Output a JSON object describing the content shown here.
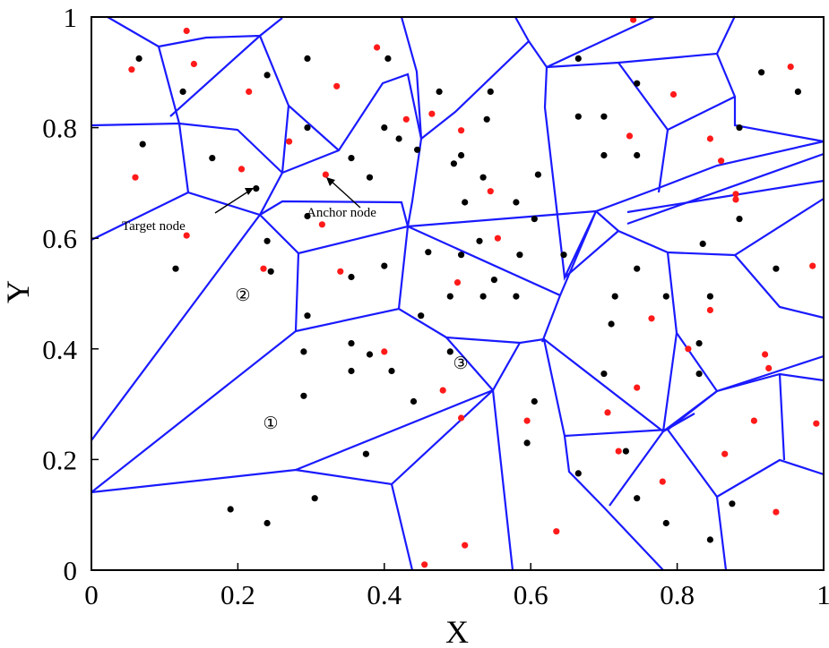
{
  "chart_data": {
    "type": "scatter",
    "xlabel": "X",
    "ylabel": "Y",
    "xlim": [
      0,
      1
    ],
    "ylim": [
      0,
      1
    ],
    "xticks": [
      "0",
      "0.2",
      "0.4",
      "0.6",
      "0.8",
      "1"
    ],
    "yticks": [
      "0",
      "0.2",
      "0.4",
      "0.6",
      "0.8",
      "1"
    ],
    "grid": false,
    "colors": {
      "edges": "#1a1aff",
      "anchor": "#ff1a1a",
      "target": "#000000"
    },
    "annotations": [
      {
        "text": "Target node",
        "x": 0.22,
        "y": 0.69
      },
      {
        "text": "Anchor node",
        "x": 0.32,
        "y": 0.71
      },
      {
        "text": "②",
        "x": 0.21,
        "y": 0.51
      },
      {
        "text": "③",
        "x": 0.51,
        "y": 0.375
      },
      {
        "text": "①",
        "x": 0.25,
        "y": 0.265
      }
    ],
    "series": [
      {
        "marker": "red-dot",
        "points": [
          [
            0.13,
            0.975
          ],
          [
            0.055,
            0.905
          ],
          [
            0.14,
            0.915
          ],
          [
            0.215,
            0.865
          ],
          [
            0.39,
            0.945
          ],
          [
            0.335,
            0.875
          ],
          [
            0.27,
            0.775
          ],
          [
            0.06,
            0.71
          ],
          [
            0.205,
            0.725
          ],
          [
            0.32,
            0.715
          ],
          [
            0.43,
            0.815
          ],
          [
            0.465,
            0.825
          ],
          [
            0.505,
            0.795
          ],
          [
            0.545,
            0.685
          ],
          [
            0.315,
            0.625
          ],
          [
            0.13,
            0.605
          ],
          [
            0.235,
            0.545
          ],
          [
            0.34,
            0.54
          ],
          [
            0.555,
            0.6
          ],
          [
            0.5,
            0.52
          ],
          [
            0.4,
            0.395
          ],
          [
            0.48,
            0.325
          ],
          [
            0.505,
            0.275
          ],
          [
            0.595,
            0.27
          ],
          [
            0.51,
            0.045
          ],
          [
            0.455,
            0.01
          ],
          [
            0.635,
            0.07
          ],
          [
            0.74,
            0.995
          ],
          [
            0.955,
            0.91
          ],
          [
            0.795,
            0.86
          ],
          [
            0.735,
            0.785
          ],
          [
            0.845,
            0.78
          ],
          [
            0.86,
            0.74
          ],
          [
            0.88,
            0.68
          ],
          [
            0.88,
            0.67
          ],
          [
            0.985,
            0.55
          ],
          [
            0.845,
            0.47
          ],
          [
            0.765,
            0.455
          ],
          [
            0.815,
            0.4
          ],
          [
            0.745,
            0.33
          ],
          [
            0.92,
            0.39
          ],
          [
            0.925,
            0.365
          ],
          [
            0.705,
            0.285
          ],
          [
            0.72,
            0.215
          ],
          [
            0.78,
            0.16
          ],
          [
            0.865,
            0.21
          ],
          [
            0.905,
            0.27
          ],
          [
            0.99,
            0.265
          ],
          [
            0.935,
            0.105
          ]
        ]
      },
      {
        "marker": "black-dot",
        "points": [
          [
            0.065,
            0.925
          ],
          [
            0.125,
            0.865
          ],
          [
            0.24,
            0.895
          ],
          [
            0.295,
            0.925
          ],
          [
            0.405,
            0.925
          ],
          [
            0.07,
            0.77
          ],
          [
            0.165,
            0.745
          ],
          [
            0.225,
            0.69
          ],
          [
            0.295,
            0.8
          ],
          [
            0.355,
            0.745
          ],
          [
            0.38,
            0.71
          ],
          [
            0.4,
            0.8
          ],
          [
            0.42,
            0.78
          ],
          [
            0.445,
            0.76
          ],
          [
            0.475,
            0.865
          ],
          [
            0.545,
            0.865
          ],
          [
            0.54,
            0.815
          ],
          [
            0.505,
            0.75
          ],
          [
            0.495,
            0.735
          ],
          [
            0.535,
            0.71
          ],
          [
            0.61,
            0.715
          ],
          [
            0.58,
            0.665
          ],
          [
            0.51,
            0.665
          ],
          [
            0.605,
            0.635
          ],
          [
            0.295,
            0.64
          ],
          [
            0.24,
            0.595
          ],
          [
            0.245,
            0.54
          ],
          [
            0.115,
            0.545
          ],
          [
            0.46,
            0.575
          ],
          [
            0.505,
            0.57
          ],
          [
            0.53,
            0.595
          ],
          [
            0.585,
            0.57
          ],
          [
            0.645,
            0.57
          ],
          [
            0.4,
            0.55
          ],
          [
            0.355,
            0.53
          ],
          [
            0.55,
            0.525
          ],
          [
            0.49,
            0.495
          ],
          [
            0.535,
            0.495
          ],
          [
            0.58,
            0.495
          ],
          [
            0.45,
            0.46
          ],
          [
            0.295,
            0.46
          ],
          [
            0.29,
            0.395
          ],
          [
            0.355,
            0.41
          ],
          [
            0.355,
            0.36
          ],
          [
            0.38,
            0.39
          ],
          [
            0.41,
            0.36
          ],
          [
            0.29,
            0.315
          ],
          [
            0.44,
            0.305
          ],
          [
            0.49,
            0.395
          ],
          [
            0.605,
            0.305
          ],
          [
            0.595,
            0.23
          ],
          [
            0.375,
            0.21
          ],
          [
            0.305,
            0.13
          ],
          [
            0.19,
            0.11
          ],
          [
            0.24,
            0.085
          ],
          [
            0.665,
            0.925
          ],
          [
            0.745,
            0.88
          ],
          [
            0.965,
            0.865
          ],
          [
            0.915,
            0.9
          ],
          [
            0.665,
            0.82
          ],
          [
            0.7,
            0.82
          ],
          [
            0.885,
            0.8
          ],
          [
            0.7,
            0.75
          ],
          [
            0.745,
            0.75
          ],
          [
            0.835,
            0.59
          ],
          [
            0.885,
            0.635
          ],
          [
            0.935,
            0.545
          ],
          [
            0.745,
            0.545
          ],
          [
            0.715,
            0.495
          ],
          [
            0.71,
            0.445
          ],
          [
            0.785,
            0.495
          ],
          [
            0.845,
            0.495
          ],
          [
            0.83,
            0.41
          ],
          [
            0.83,
            0.355
          ],
          [
            0.7,
            0.355
          ],
          [
            0.73,
            0.215
          ],
          [
            0.665,
            0.175
          ],
          [
            0.745,
            0.13
          ],
          [
            0.785,
            0.085
          ],
          [
            0.875,
            0.12
          ],
          [
            0.845,
            0.055
          ]
        ]
      }
    ]
  }
}
